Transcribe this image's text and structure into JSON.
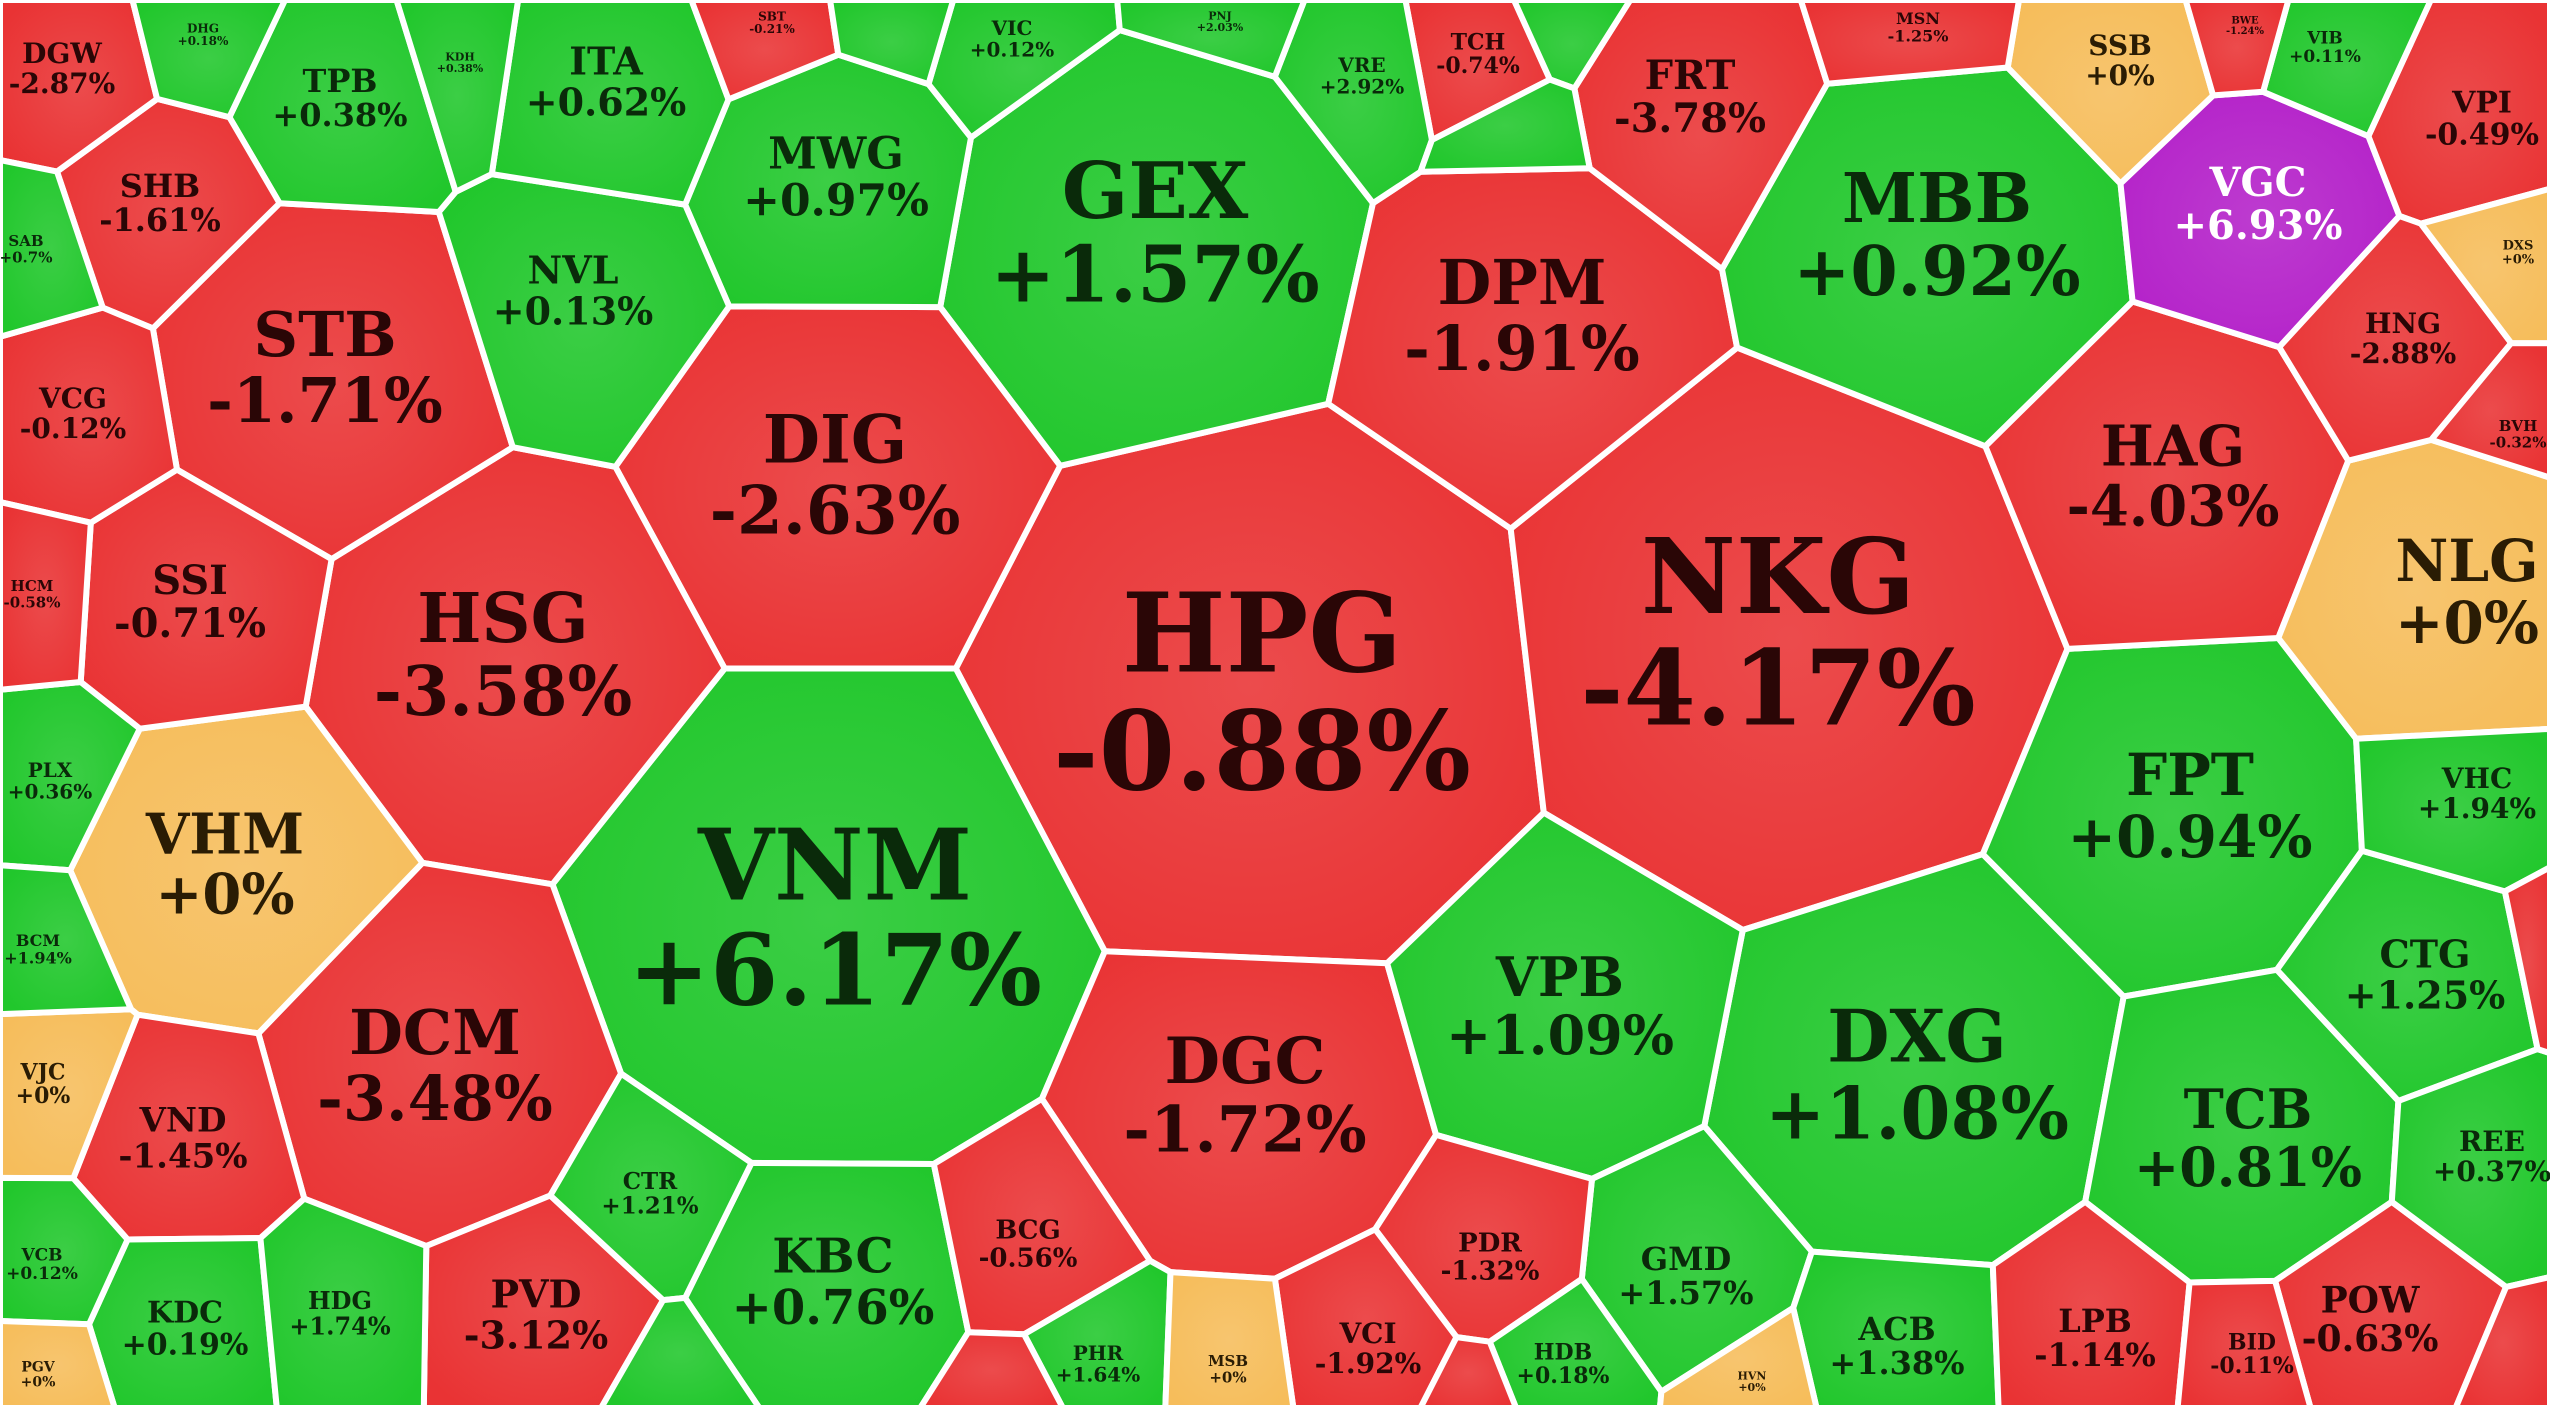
{
  "colors": {
    "up": "#21c72c",
    "down": "#e93334",
    "flat": "#f6bd5b",
    "ceiling": "#b421c9",
    "border": "#ffffff",
    "text_up": "#0a2a0a",
    "text_down": "#2a0606",
    "text_flat": "#2a1c04",
    "text_ceiling": "#ffffff"
  },
  "chart_data": {
    "type": "heatmap",
    "title": "",
    "value_unit": "%",
    "cells": [
      {
        "ticker": "HPG",
        "change": "-0.88%",
        "value": -0.88,
        "status": "down"
      },
      {
        "ticker": "NKG",
        "change": "-4.17%",
        "value": -4.17,
        "status": "down"
      },
      {
        "ticker": "VNM",
        "change": "+6.17%",
        "value": 6.17,
        "status": "up"
      },
      {
        "ticker": "GEX",
        "change": "+1.57%",
        "value": 1.57,
        "status": "up"
      },
      {
        "ticker": "DIG",
        "change": "-2.63%",
        "value": -2.63,
        "status": "down"
      },
      {
        "ticker": "HSG",
        "change": "-3.58%",
        "value": -3.58,
        "status": "down"
      },
      {
        "ticker": "DPM",
        "change": "-1.91%",
        "value": -1.91,
        "status": "down"
      },
      {
        "ticker": "MBB",
        "change": "+0.92%",
        "value": 0.92,
        "status": "up"
      },
      {
        "ticker": "DXG",
        "change": "+1.08%",
        "value": 1.08,
        "status": "up"
      },
      {
        "ticker": "DGC",
        "change": "-1.72%",
        "value": -1.72,
        "status": "down"
      },
      {
        "ticker": "STB",
        "change": "-1.71%",
        "value": -1.71,
        "status": "down"
      },
      {
        "ticker": "DCM",
        "change": "-3.48%",
        "value": -3.48,
        "status": "down"
      },
      {
        "ticker": "FPT",
        "change": "+0.94%",
        "value": 0.94,
        "status": "up"
      },
      {
        "ticker": "HAG",
        "change": "-4.03%",
        "value": -4.03,
        "status": "down"
      },
      {
        "ticker": "VPB",
        "change": "+1.09%",
        "value": 1.09,
        "status": "up"
      },
      {
        "ticker": "TCB",
        "change": "+0.81%",
        "value": 0.81,
        "status": "up"
      },
      {
        "ticker": "KBC",
        "change": "+0.76%",
        "value": 0.76,
        "status": "up"
      },
      {
        "ticker": "VHM",
        "change": "+0%",
        "value": 0,
        "status": "flat"
      },
      {
        "ticker": "NLG",
        "change": "+0%",
        "value": 0,
        "status": "flat"
      },
      {
        "ticker": "MWG",
        "change": "+0.97%",
        "value": 0.97,
        "status": "up"
      },
      {
        "ticker": "NVL",
        "change": "+0.13%",
        "value": 0.13,
        "status": "up"
      },
      {
        "ticker": "FRT",
        "change": "-3.78%",
        "value": -3.78,
        "status": "down"
      },
      {
        "ticker": "VGC",
        "change": "+6.93%",
        "value": 6.93,
        "status": "ceiling"
      },
      {
        "ticker": "SSI",
        "change": "-0.71%",
        "value": -0.71,
        "status": "down"
      },
      {
        "ticker": "ITA",
        "change": "+0.62%",
        "value": 0.62,
        "status": "up"
      },
      {
        "ticker": "TPB",
        "change": "+0.38%",
        "value": 0.38,
        "status": "up"
      },
      {
        "ticker": "SHB",
        "change": "-1.61%",
        "value": -1.61,
        "status": "down"
      },
      {
        "ticker": "VND",
        "change": "-1.45%",
        "value": -1.45,
        "status": "down"
      },
      {
        "ticker": "PVD",
        "change": "-3.12%",
        "value": -3.12,
        "status": "down"
      },
      {
        "ticker": "CTG",
        "change": "+1.25%",
        "value": 1.25,
        "status": "up"
      },
      {
        "ticker": "GMD",
        "change": "+1.57%",
        "value": 1.57,
        "status": "up"
      },
      {
        "ticker": "ACB",
        "change": "+1.38%",
        "value": 1.38,
        "status": "up"
      },
      {
        "ticker": "POW",
        "change": "-0.63%",
        "value": -0.63,
        "status": "down"
      },
      {
        "ticker": "LPB",
        "change": "-1.14%",
        "value": -1.14,
        "status": "down"
      },
      {
        "ticker": "KDC",
        "change": "+0.19%",
        "value": 0.19,
        "status": "up"
      },
      {
        "ticker": "DGW",
        "change": "-2.87%",
        "value": -2.87,
        "status": "down"
      },
      {
        "ticker": "VCG",
        "change": "-0.12%",
        "value": -0.12,
        "status": "down"
      },
      {
        "ticker": "VPI",
        "change": "-0.49%",
        "value": -0.49,
        "status": "down"
      },
      {
        "ticker": "HNG",
        "change": "-2.88%",
        "value": -2.88,
        "status": "down"
      },
      {
        "ticker": "VHC",
        "change": "+1.94%",
        "value": 1.94,
        "status": "up"
      },
      {
        "ticker": "REE",
        "change": "+0.37%",
        "value": 0.37,
        "status": "up"
      },
      {
        "ticker": "SSB",
        "change": "+0%",
        "value": 0,
        "status": "flat"
      },
      {
        "ticker": "PDR",
        "change": "-1.32%",
        "value": -1.32,
        "status": "down"
      },
      {
        "ticker": "BCG",
        "change": "-0.56%",
        "value": -0.56,
        "status": "down"
      },
      {
        "ticker": "VCI",
        "change": "-1.92%",
        "value": -1.92,
        "status": "down"
      },
      {
        "ticker": "CTR",
        "change": "+1.21%",
        "value": 1.21,
        "status": "up"
      },
      {
        "ticker": "HDG",
        "change": "+1.74%",
        "value": 1.74,
        "status": "up"
      },
      {
        "ticker": "HDB",
        "change": "+0.18%",
        "value": 0.18,
        "status": "up"
      },
      {
        "ticker": "PHR",
        "change": "+1.64%",
        "value": 1.64,
        "status": "up"
      },
      {
        "ticker": "BID",
        "change": "-0.11%",
        "value": -0.11,
        "status": "down"
      },
      {
        "ticker": "TCH",
        "change": "-0.74%",
        "value": -0.74,
        "status": "down"
      },
      {
        "ticker": "VRE",
        "change": "+2.92%",
        "value": 2.92,
        "status": "up"
      },
      {
        "ticker": "VIC",
        "change": "+0.12%",
        "value": 0.12,
        "status": "up"
      },
      {
        "ticker": "MSN",
        "change": "-1.25%",
        "value": -1.25,
        "status": "down"
      },
      {
        "ticker": "VIB",
        "change": "+0.11%",
        "value": 0.11,
        "status": "up"
      },
      {
        "ticker": "PLX",
        "change": "+0.36%",
        "value": 0.36,
        "status": "up"
      },
      {
        "ticker": "VJC",
        "change": "+0%",
        "value": 0,
        "status": "flat"
      },
      {
        "ticker": "BCM",
        "change": "+1.94%",
        "value": 1.94,
        "status": "up"
      },
      {
        "ticker": "HCM",
        "change": "-0.58%",
        "value": -0.58,
        "status": "down"
      },
      {
        "ticker": "SAB",
        "change": "+0.7%",
        "value": 0.7,
        "status": "up"
      },
      {
        "ticker": "VCB",
        "change": "+0.12%",
        "value": 0.12,
        "status": "up"
      },
      {
        "ticker": "PGV",
        "change": "+0%",
        "value": 0,
        "status": "flat"
      },
      {
        "ticker": "MSB",
        "change": "+0%",
        "value": 0,
        "status": "flat"
      },
      {
        "ticker": "BVH",
        "change": "-0.32%",
        "value": -0.32,
        "status": "down"
      },
      {
        "ticker": "DXS",
        "change": "+0%",
        "value": 0,
        "status": "flat"
      },
      {
        "ticker": "DHG",
        "change": "+0.18%",
        "value": 0.18,
        "status": "up"
      },
      {
        "ticker": "KDH",
        "change": "+0.38%",
        "value": 0.38,
        "status": "up"
      },
      {
        "ticker": "SBT",
        "change": "-0.21%",
        "value": -0.21,
        "status": "down"
      },
      {
        "ticker": "PNJ",
        "change": "+2.03%",
        "value": 2.03,
        "status": "up"
      },
      {
        "ticker": "BWE",
        "change": "-1.24%",
        "value": -1.24,
        "status": "down"
      },
      {
        "ticker": "HVN",
        "change": "+0%",
        "value": 0,
        "status": "flat"
      }
    ]
  }
}
